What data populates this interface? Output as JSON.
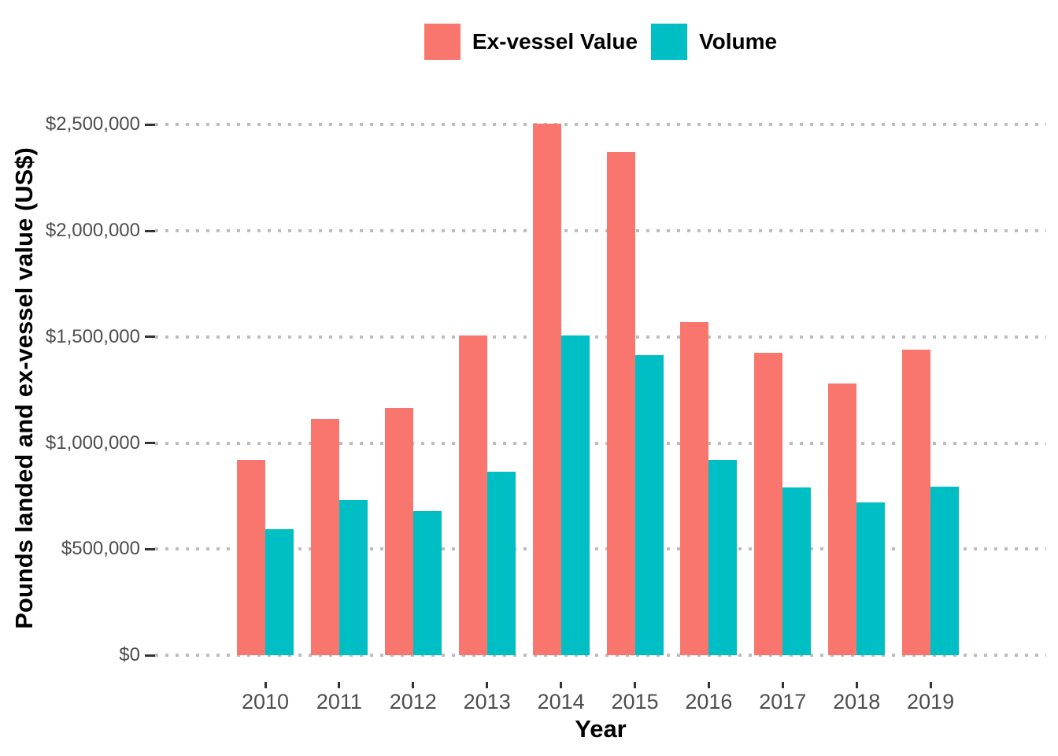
{
  "chart_data": {
    "type": "bar",
    "title": "",
    "xlabel": "Year",
    "ylabel": "Pounds landed and ex-vessel value (US$)",
    "categories": [
      "2010",
      "2011",
      "2012",
      "2013",
      "2014",
      "2015",
      "2016",
      "2017",
      "2018",
      "2019"
    ],
    "series": [
      {
        "name": "Ex-vessel Value",
        "color": "#F8766D",
        "values": [
          920000,
          1115000,
          1165000,
          1505000,
          2505000,
          2370000,
          1570000,
          1425000,
          1280000,
          1440000
        ]
      },
      {
        "name": "Volume",
        "color": "#00BFC4",
        "values": [
          595000,
          730000,
          680000,
          865000,
          1505000,
          1415000,
          920000,
          790000,
          720000,
          795000
        ]
      }
    ],
    "y_axis": {
      "ticks": [
        {
          "value": 0,
          "label": "$0"
        },
        {
          "value": 500000,
          "label": "$500,000"
        },
        {
          "value": 1000000,
          "label": "$1,000,000"
        },
        {
          "value": 1500000,
          "label": "$1,500,000"
        },
        {
          "value": 2000000,
          "label": "$2,000,000"
        },
        {
          "value": 2500000,
          "label": "$2,500,000"
        }
      ],
      "range": [
        0,
        2630000
      ]
    },
    "legend_position": "top-center",
    "grid": "horizontal-major-dotted",
    "grid_color": "#BDBDBD",
    "axis_text_color": "#4D4D4D",
    "bar_layout": "dodged"
  }
}
